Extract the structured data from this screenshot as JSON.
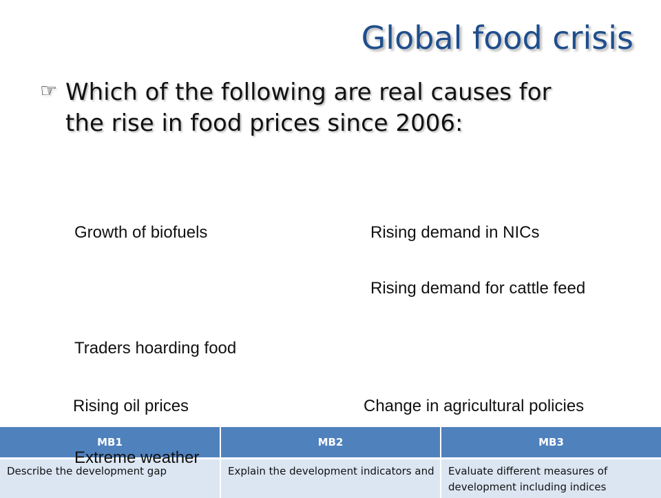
{
  "slide": {
    "title": "Global food crisis",
    "question": "Which of the following are real causes for the rise in food prices since 2006:",
    "bullet_icon": "pointing-hand-icon"
  },
  "options": [
    "Growth of biofuels",
    "Rising demand in NICs",
    "Rising demand for cattle feed",
    "Traders hoarding food",
    "Rising oil prices",
    "Change in agricultural policies",
    "Extreme weather"
  ],
  "mark_bands": {
    "headers": [
      "MB1",
      "MB2",
      "MB3"
    ],
    "cells": [
      "Describe the development gap",
      "Explain the development indicators and",
      "Evaluate different measures of development including indices"
    ]
  },
  "colors": {
    "title": "#1f4e8c",
    "table_header": "#4f81bd",
    "table_cell": "#dce6f2"
  }
}
